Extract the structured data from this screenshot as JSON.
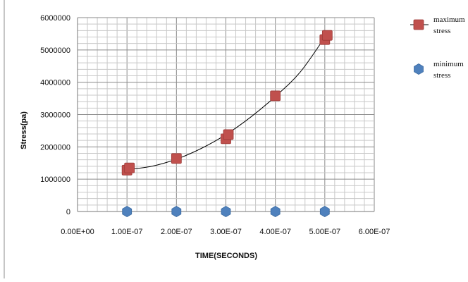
{
  "chart_data": {
    "type": "scatter",
    "title": "",
    "xlabel": "TIME(SECONDS)",
    "ylabel": "Stress(pa)",
    "xlim": [
      0,
      6e-07
    ],
    "ylim": [
      0,
      6000000
    ],
    "x_tick_labels": [
      "0.00E+00",
      "1.00E-07",
      "2.00E-07",
      "3.00E-07",
      "4.00E-07",
      "5.00E-07",
      "6.00E-07"
    ],
    "y_tick_labels": [
      "0",
      "1000000",
      "2000000",
      "3000000",
      "4000000",
      "5000000",
      "6000000"
    ],
    "grid": true,
    "legend_position": "right",
    "series": [
      {
        "name": "maximum stress",
        "name_lines": [
          "maximum",
          "stress"
        ],
        "marker": "square",
        "color": "#c0504d",
        "x": [
          1e-07,
          1.05e-07,
          2e-07,
          3e-07,
          3.05e-07,
          4e-07,
          5e-07,
          5.05e-07
        ],
        "y": [
          1280000,
          1350000,
          1640000,
          2250000,
          2380000,
          3580000,
          5320000,
          5450000
        ]
      },
      {
        "name": "minimum stress",
        "name_lines": [
          "minimum",
          "stress"
        ],
        "marker": "hexagon",
        "color": "#4f81bd",
        "x": [
          1e-07,
          2e-07,
          3e-07,
          4e-07,
          5e-07
        ],
        "y": [
          0,
          0,
          0,
          0,
          0
        ]
      }
    ],
    "trendline": {
      "series": "maximum stress",
      "type": "polynomial",
      "color": "#000000",
      "x": [
        1e-07,
        1.5e-07,
        2e-07,
        2.5e-07,
        3e-07,
        3.5e-07,
        4e-07,
        4.5e-07,
        5e-07
      ],
      "y": [
        1300000,
        1400000,
        1620000,
        1950000,
        2380000,
        2920000,
        3560000,
        4310000,
        5390000
      ]
    }
  }
}
